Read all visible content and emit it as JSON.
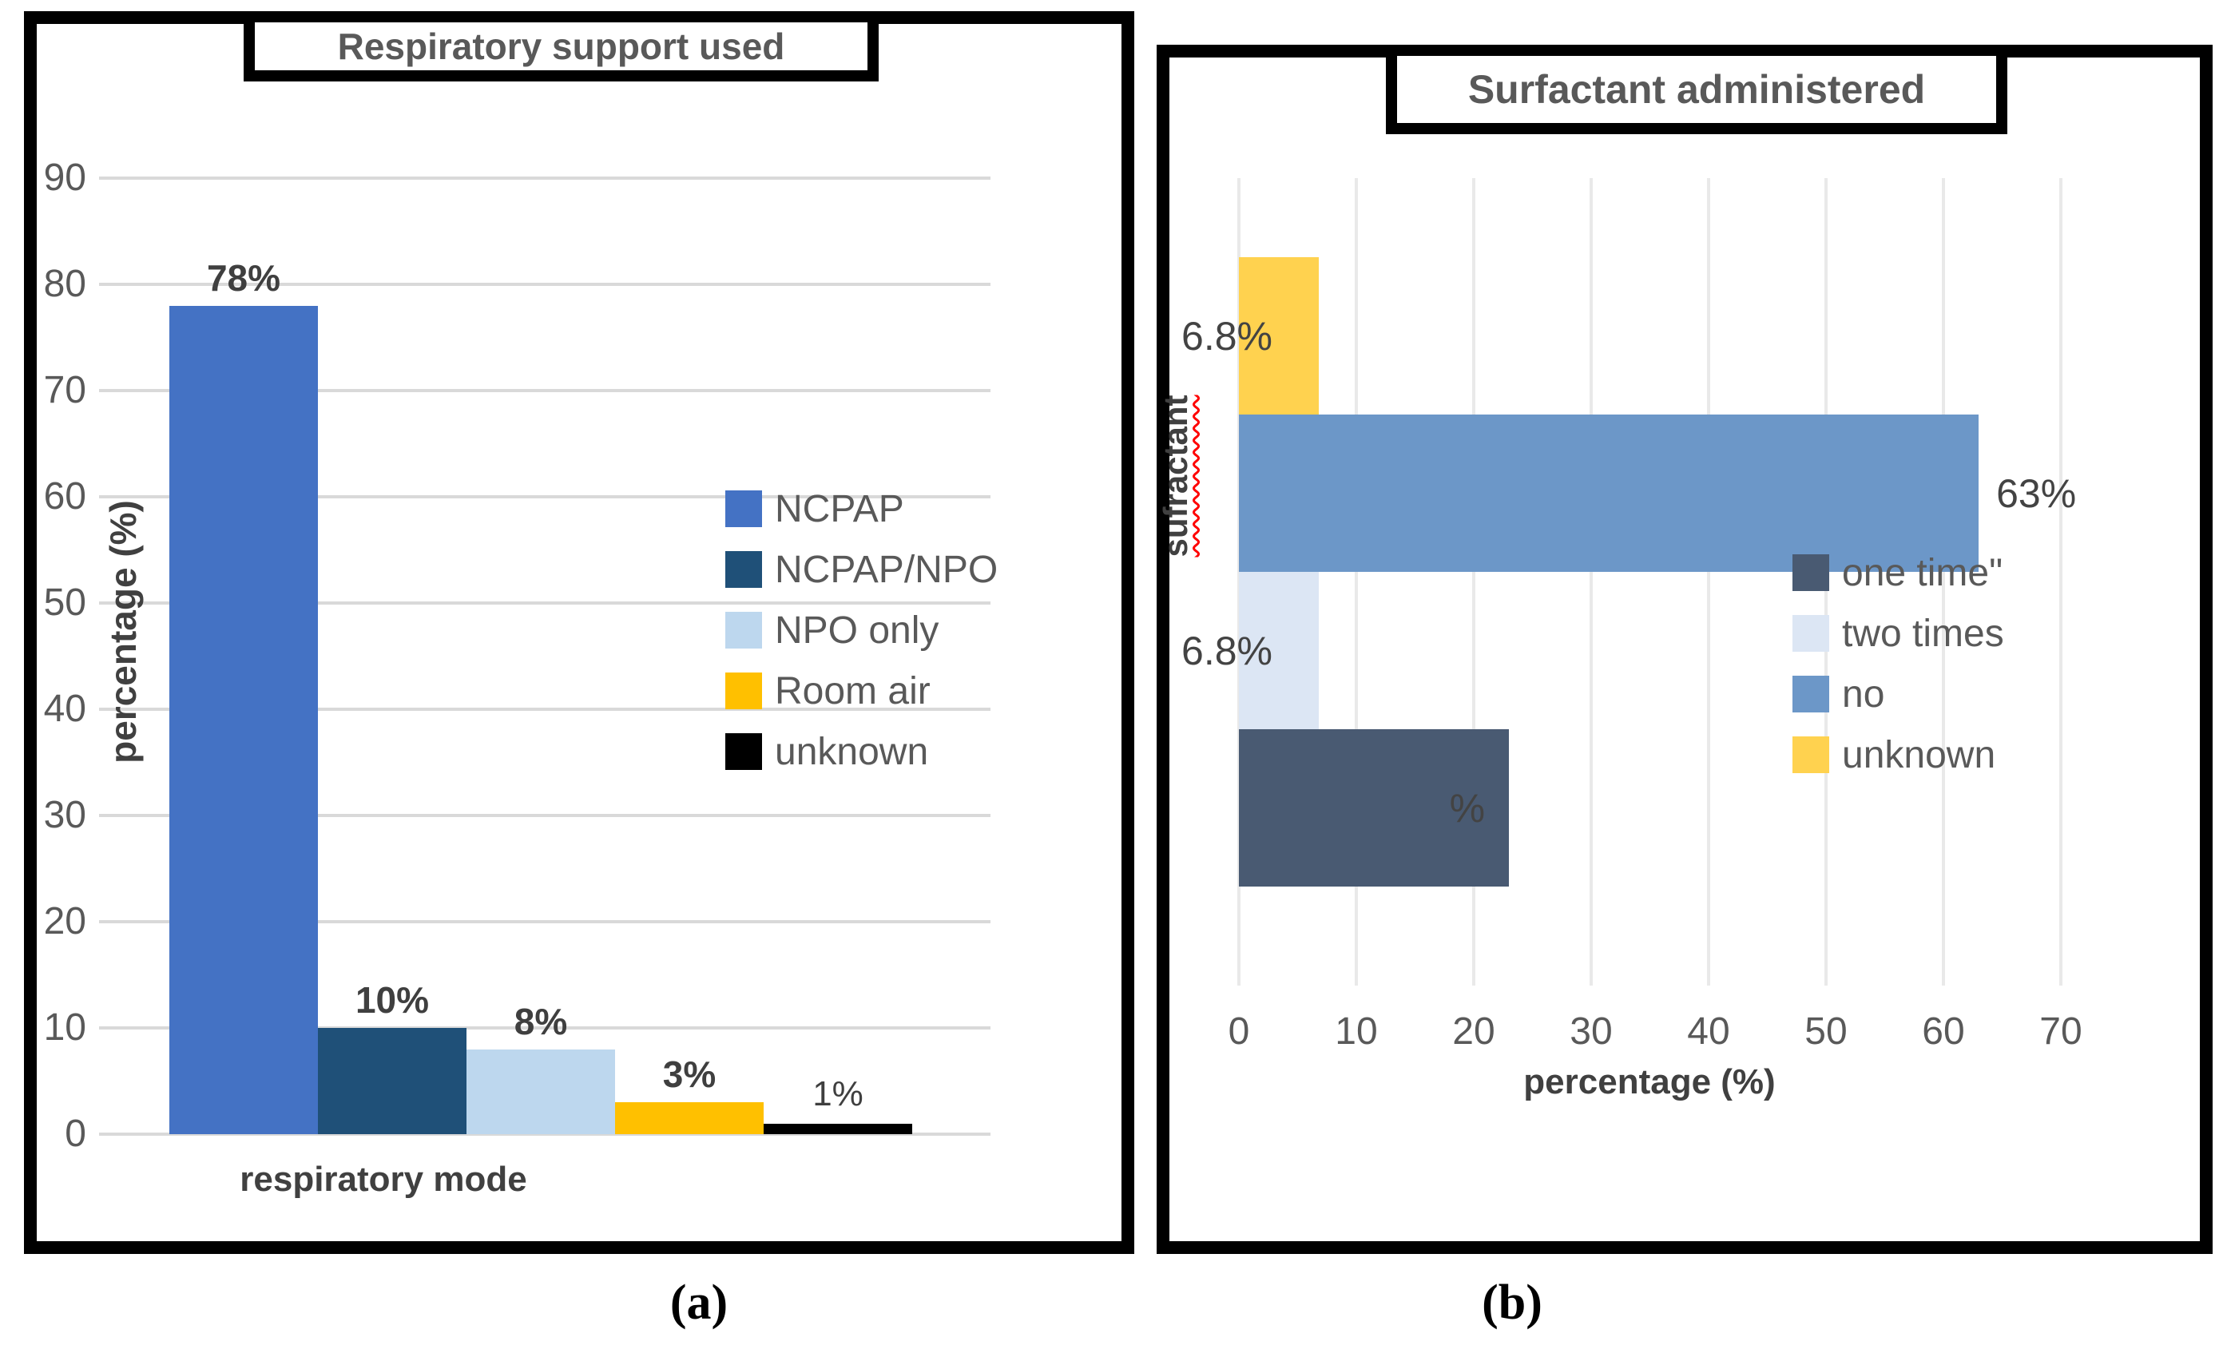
{
  "figure": {
    "caption_a": "(a)",
    "caption_b": "(b)"
  },
  "chart_data": [
    {
      "type": "bar",
      "orientation": "vertical",
      "title": "Respiratory support used",
      "xlabel": "respiratory mode",
      "ylabel": "percentage (%)",
      "ylim": [
        0,
        90
      ],
      "yticks": [
        0,
        10,
        20,
        30,
        40,
        50,
        60,
        70,
        80,
        90
      ],
      "grid": true,
      "legend_position": "right-middle",
      "categories": [
        "NCPAP",
        "NCPAP/NPO",
        "NPO only",
        "Room air",
        "unknown"
      ],
      "values": [
        78,
        10,
        8,
        3,
        1
      ],
      "bar_labels": [
        "78%",
        "10%",
        "8%",
        "3%",
        "1%"
      ],
      "bar_label_bold": [
        true,
        true,
        true,
        true,
        false
      ],
      "colors": [
        "#4472C4",
        "#1F5078",
        "#BDD7EE",
        "#FFC000",
        "#000000"
      ],
      "legend": [
        {
          "label": "NCPAP",
          "color": "#4472C4"
        },
        {
          "label": "NCPAP/NPO",
          "color": "#1F5078"
        },
        {
          "label": "NPO only",
          "color": "#BDD7EE"
        },
        {
          "label": "Room air",
          "color": "#FFC000"
        },
        {
          "label": "unknown",
          "color": "#000000"
        }
      ]
    },
    {
      "type": "bar",
      "orientation": "horizontal",
      "title": "Surfactant administered",
      "xlabel": "percentage (%)",
      "ylabel": "sufractant",
      "ylabel_spellcheck_wavy_underline": true,
      "xlim": [
        0,
        70
      ],
      "xticks": [
        0,
        10,
        20,
        30,
        40,
        50,
        60,
        70
      ],
      "grid": true,
      "legend_position": "right-middle",
      "categories": [
        "unknown",
        "no",
        "two times",
        "one time"
      ],
      "values": [
        6.8,
        63,
        6.8,
        23
      ],
      "bar_labels": [
        "6.8%",
        "63%",
        "6.8%",
        "%"
      ],
      "bar_label_positions": [
        "outside-base",
        "outside-end",
        "outside-base",
        "inside-end"
      ],
      "colors": [
        "#FFD24F",
        "#6C97C8",
        "#DCE6F4",
        "#495A72"
      ],
      "legend": [
        {
          "label": "one time\"",
          "color": "#495A72"
        },
        {
          "label": "two times",
          "color": "#DCE6F4"
        },
        {
          "label": "no",
          "color": "#6C97C8"
        },
        {
          "label": "unknown",
          "color": "#FFD24F"
        }
      ]
    }
  ]
}
